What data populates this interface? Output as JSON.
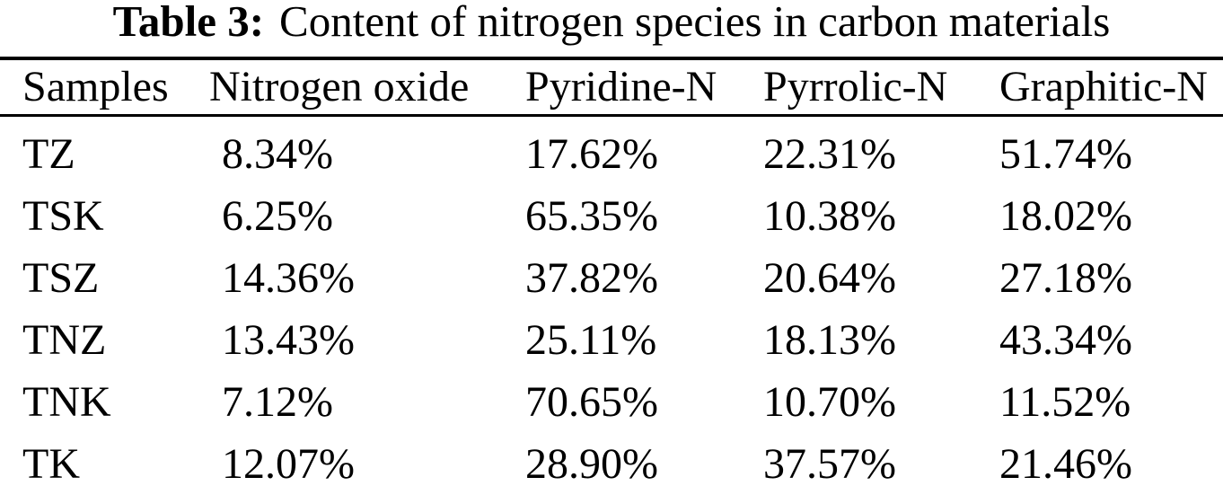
{
  "colors": {
    "background": "#ffffff",
    "text": "#000000",
    "rule": "#000000"
  },
  "caption": {
    "label": "Table 3:",
    "text": "Content of nitrogen species in carbon materials"
  },
  "table": {
    "columns": [
      "Samples",
      "Nitrogen oxide",
      "Pyridine-N",
      "Pyrrolic-N",
      "Graphitic-N"
    ],
    "rows": [
      {
        "sample": "TZ",
        "values": [
          "8.34%",
          "17.62%",
          "22.31%",
          "51.74%"
        ]
      },
      {
        "sample": "TSK",
        "values": [
          "6.25%",
          "65.35%",
          "10.38%",
          "18.02%"
        ]
      },
      {
        "sample": "TSZ",
        "values": [
          "14.36%",
          "37.82%",
          "20.64%",
          "27.18%"
        ]
      },
      {
        "sample": "TNZ",
        "values": [
          "13.43%",
          "25.11%",
          "18.13%",
          "43.34%"
        ]
      },
      {
        "sample": "TNK",
        "values": [
          "7.12%",
          "70.65%",
          "10.70%",
          "11.52%"
        ]
      },
      {
        "sample": "TK",
        "values": [
          "12.07%",
          "28.90%",
          "37.57%",
          "21.46%"
        ]
      }
    ]
  }
}
